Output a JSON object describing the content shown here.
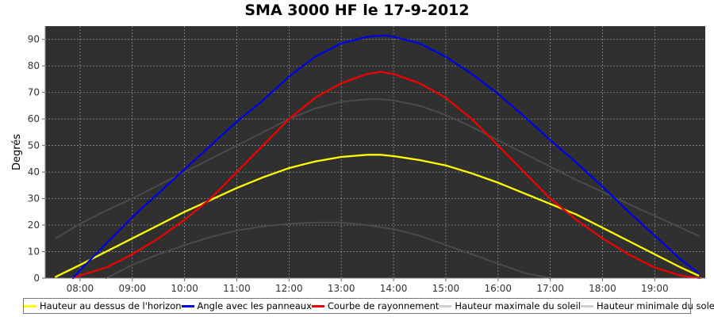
{
  "chart_data": {
    "type": "line",
    "title": "SMA 3000 HF le 17-9-2012",
    "xlabel": "",
    "ylabel": "Degrés",
    "ylim": [
      0,
      95
    ],
    "xlim": [
      "07:20",
      "19:58"
    ],
    "xticks": [
      "08:00",
      "09:00",
      "10:00",
      "11:00",
      "12:00",
      "13:00",
      "14:00",
      "15:00",
      "16:00",
      "17:00",
      "18:00",
      "19:00"
    ],
    "yticks": [
      0,
      10,
      20,
      30,
      40,
      50,
      60,
      70,
      80,
      90
    ],
    "grid": true,
    "legend_position": "bottom",
    "background": "#303030",
    "series": [
      {
        "name": "Hauteur au dessus de l'horizon",
        "color": "#ffff00",
        "x": [
          "07:32",
          "08:00",
          "08:30",
          "09:00",
          "09:30",
          "10:00",
          "10:30",
          "11:00",
          "11:30",
          "12:00",
          "12:30",
          "13:00",
          "13:30",
          "13:45",
          "14:00",
          "14:30",
          "15:00",
          "15:30",
          "16:00",
          "16:30",
          "17:00",
          "17:30",
          "18:00",
          "18:30",
          "19:00",
          "19:30",
          "19:50"
        ],
        "values": [
          0.5,
          5,
          10,
          15,
          20,
          25,
          29.5,
          34,
          38,
          41.5,
          44,
          45.7,
          46.5,
          46.5,
          46,
          44.5,
          42.5,
          39.5,
          36,
          32,
          28,
          24,
          19,
          14,
          9,
          4,
          1
        ]
      },
      {
        "name": "Angle avec les panneaux",
        "color": "#0000e0",
        "x": [
          "07:52",
          "08:00",
          "08:30",
          "09:00",
          "09:30",
          "10:00",
          "10:30",
          "11:00",
          "11:30",
          "12:00",
          "12:30",
          "13:00",
          "13:30",
          "13:50",
          "14:00",
          "14:30",
          "15:00",
          "15:30",
          "16:00",
          "16:30",
          "17:00",
          "17:30",
          "18:00",
          "18:30",
          "19:00",
          "19:30",
          "19:50"
        ],
        "values": [
          0,
          3,
          13,
          23,
          32,
          41,
          50,
          59,
          67,
          76,
          83.5,
          88.5,
          91,
          91.5,
          91,
          88.5,
          83.5,
          77,
          69.5,
          61,
          52,
          43.5,
          34.5,
          25,
          16,
          7,
          2
        ]
      },
      {
        "name": "Courbe de rayonnement",
        "color": "#ee0000",
        "x": [
          "07:52",
          "08:00",
          "08:30",
          "09:00",
          "09:30",
          "10:00",
          "10:30",
          "11:00",
          "11:30",
          "12:00",
          "12:30",
          "13:00",
          "13:30",
          "13:45",
          "14:00",
          "14:30",
          "15:00",
          "15:30",
          "16:00",
          "16:30",
          "17:00",
          "17:30",
          "18:00",
          "18:30",
          "19:00",
          "19:30",
          "19:52"
        ],
        "values": [
          0,
          1,
          4,
          9,
          15,
          22,
          30,
          40,
          50,
          60,
          68,
          73.5,
          77,
          77.8,
          77,
          73.5,
          68,
          60,
          50,
          40,
          30,
          22,
          15,
          9,
          4,
          1,
          0
        ]
      },
      {
        "name": "Hauteur maximale du soleil",
        "color": "#4a4a4a",
        "x": [
          "07:32",
          "08:00",
          "08:30",
          "09:00",
          "09:30",
          "10:00",
          "10:30",
          "11:00",
          "11:30",
          "12:00",
          "12:30",
          "13:00",
          "13:30",
          "13:45",
          "14:00",
          "14:30",
          "15:00",
          "15:30",
          "16:00",
          "16:30",
          "17:00",
          "17:30",
          "18:00",
          "18:30",
          "19:00",
          "19:30",
          "19:50"
        ],
        "values": [
          15,
          20.5,
          25.5,
          30,
          35,
          40,
          45,
          50,
          55,
          60,
          64,
          66.5,
          67.5,
          67.5,
          67,
          65,
          61.5,
          57,
          52,
          47,
          42,
          37,
          32.5,
          28,
          23.5,
          19,
          16
        ]
      },
      {
        "name": "Hauteur minimale du soleil",
        "color": "#4a4a4a",
        "x": [
          "08:30",
          "09:00",
          "09:30",
          "10:00",
          "10:30",
          "11:00",
          "11:30",
          "12:00",
          "12:30",
          "13:00",
          "13:30",
          "14:00",
          "14:30",
          "15:00",
          "15:30",
          "16:00",
          "16:30",
          "17:00"
        ],
        "values": [
          0,
          5,
          9,
          12.5,
          15.5,
          18,
          19.5,
          20.5,
          21,
          21,
          20,
          18.5,
          16,
          12.5,
          9,
          5.5,
          2,
          0
        ]
      }
    ]
  }
}
